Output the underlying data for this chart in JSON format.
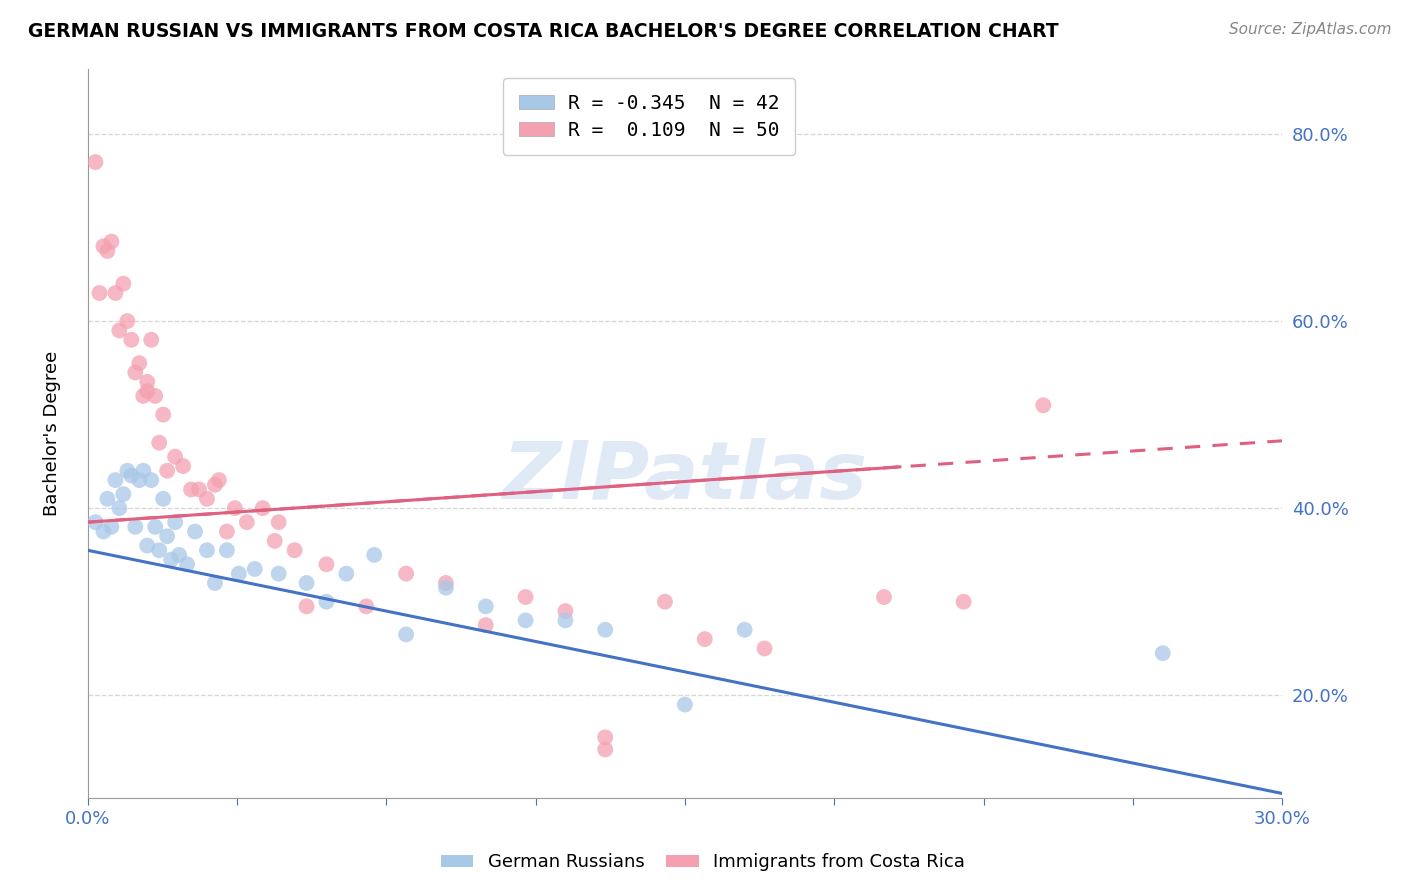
{
  "title": "GERMAN RUSSIAN VS IMMIGRANTS FROM COSTA RICA BACHELOR'S DEGREE CORRELATION CHART",
  "source": "Source: ZipAtlas.com",
  "ylabel": "Bachelor's Degree",
  "x_min": 0.0,
  "x_max": 0.3,
  "y_min": 0.09,
  "y_max": 0.87,
  "x_ticks": [
    0.0,
    0.0375,
    0.075,
    0.1125,
    0.15,
    0.1875,
    0.225,
    0.2625,
    0.3
  ],
  "x_tick_labels": [
    "0.0%",
    "",
    "",
    "",
    "",
    "",
    "",
    "",
    "30.0%"
  ],
  "y_ticks": [
    0.2,
    0.4,
    0.6,
    0.8
  ],
  "y_tick_labels": [
    "20.0%",
    "40.0%",
    "60.0%",
    "80.0%"
  ],
  "legend_entry1": "R = -0.345  N = 42",
  "legend_entry2": "R =  0.109  N = 50",
  "color_blue": "#a8c8e8",
  "color_pink": "#f4a0b0",
  "color_blue_line": "#4472c4",
  "color_pink_line": "#e06080",
  "watermark": "ZIPatlas",
  "blue_scatter_x": [
    0.002,
    0.004,
    0.005,
    0.006,
    0.007,
    0.008,
    0.009,
    0.01,
    0.011,
    0.012,
    0.013,
    0.014,
    0.015,
    0.016,
    0.017,
    0.018,
    0.019,
    0.02,
    0.021,
    0.022,
    0.023,
    0.025,
    0.027,
    0.03,
    0.032,
    0.035,
    0.038,
    0.042,
    0.048,
    0.055,
    0.06,
    0.065,
    0.072,
    0.08,
    0.09,
    0.1,
    0.11,
    0.12,
    0.13,
    0.15,
    0.165,
    0.27
  ],
  "blue_scatter_y": [
    0.385,
    0.375,
    0.41,
    0.38,
    0.43,
    0.4,
    0.415,
    0.44,
    0.435,
    0.38,
    0.43,
    0.44,
    0.36,
    0.43,
    0.38,
    0.355,
    0.41,
    0.37,
    0.345,
    0.385,
    0.35,
    0.34,
    0.375,
    0.355,
    0.32,
    0.355,
    0.33,
    0.335,
    0.33,
    0.32,
    0.3,
    0.33,
    0.35,
    0.265,
    0.315,
    0.295,
    0.28,
    0.28,
    0.27,
    0.19,
    0.27,
    0.245
  ],
  "pink_scatter_x": [
    0.002,
    0.003,
    0.004,
    0.005,
    0.006,
    0.007,
    0.008,
    0.009,
    0.01,
    0.011,
    0.012,
    0.013,
    0.014,
    0.015,
    0.016,
    0.017,
    0.018,
    0.019,
    0.02,
    0.022,
    0.024,
    0.026,
    0.028,
    0.03,
    0.033,
    0.037,
    0.04,
    0.044,
    0.048,
    0.052,
    0.06,
    0.07,
    0.08,
    0.09,
    0.1,
    0.11,
    0.12,
    0.13,
    0.145,
    0.155,
    0.17,
    0.2,
    0.22,
    0.24,
    0.032,
    0.047,
    0.13,
    0.055,
    0.015,
    0.035
  ],
  "pink_scatter_y": [
    0.77,
    0.63,
    0.68,
    0.675,
    0.685,
    0.63,
    0.59,
    0.64,
    0.6,
    0.58,
    0.545,
    0.555,
    0.52,
    0.535,
    0.58,
    0.52,
    0.47,
    0.5,
    0.44,
    0.455,
    0.445,
    0.42,
    0.42,
    0.41,
    0.43,
    0.4,
    0.385,
    0.4,
    0.385,
    0.355,
    0.34,
    0.295,
    0.33,
    0.32,
    0.275,
    0.305,
    0.29,
    0.155,
    0.3,
    0.26,
    0.25,
    0.305,
    0.3,
    0.51,
    0.425,
    0.365,
    0.142,
    0.295,
    0.525,
    0.375
  ],
  "blue_line_x0": 0.0,
  "blue_line_x1": 0.3,
  "blue_line_y0": 0.355,
  "blue_line_y1": 0.095,
  "pink_line_x0": 0.0,
  "pink_line_x1": 0.3,
  "pink_line_y0": 0.385,
  "pink_line_y1": 0.472,
  "legend_bottom_labels": [
    "German Russians",
    "Immigrants from Costa Rica"
  ],
  "grid_color": "#cccccc",
  "background_color": "#ffffff",
  "tick_color": "#4472c4"
}
